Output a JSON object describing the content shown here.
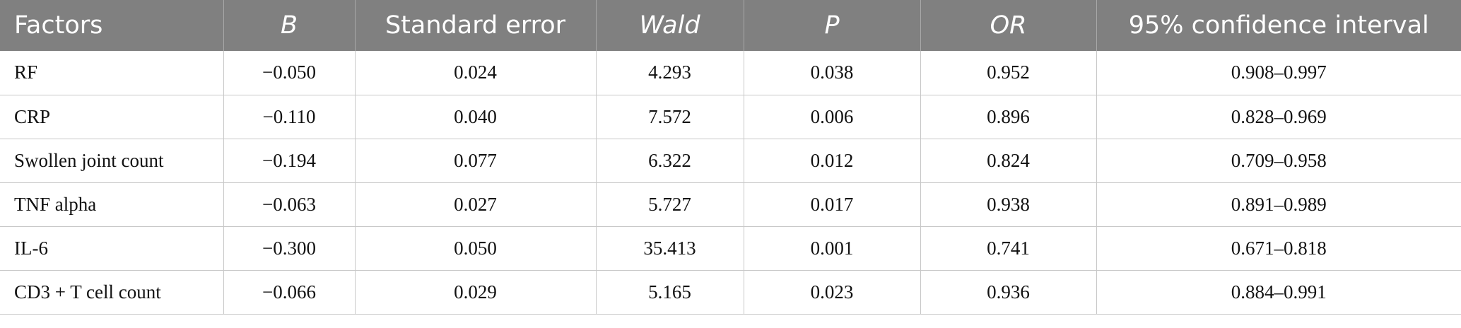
{
  "table": {
    "headers": [
      "Factors",
      "B",
      "Standard error",
      "Wald",
      "P",
      "OR",
      "95% confidence interval"
    ],
    "rows": [
      [
        "RF",
        "−0.050",
        "0.024",
        "4.293",
        "0.038",
        "0.952",
        "0.908–0.997"
      ],
      [
        "CRP",
        "−0.110",
        "0.040",
        "7.572",
        "0.006",
        "0.896",
        "0.828–0.969"
      ],
      [
        "Swollen joint count",
        "−0.194",
        "0.077",
        "6.322",
        "0.012",
        "0.824",
        "0.709–0.958"
      ],
      [
        "TNF alpha",
        "−0.063",
        "0.027",
        "5.727",
        "0.017",
        "0.938",
        "0.891–0.989"
      ],
      [
        "IL-6",
        "−0.300",
        "0.050",
        "35.413",
        "0.001",
        "0.741",
        "0.671–0.818"
      ],
      [
        "CD3 + T cell count",
        "−0.066",
        "0.029",
        "5.165",
        "0.023",
        "0.936",
        "0.884–0.991"
      ]
    ]
  }
}
